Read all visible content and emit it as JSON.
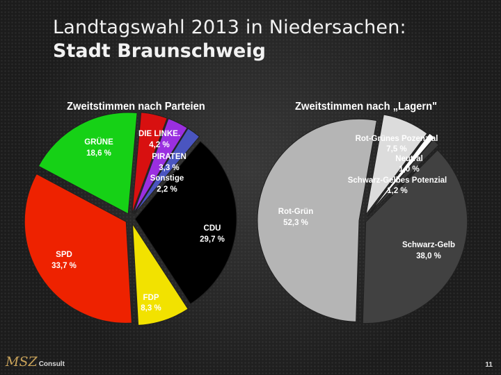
{
  "slide": {
    "title_line1": "Landtagswahl 2013 in Niedersachen:",
    "title_line2": "Stadt Braunschweig",
    "logo_mark": "MSZ",
    "logo_word": "Consult",
    "page_number": "11"
  },
  "chart_data": [
    {
      "type": "pie",
      "title": "Zweitstimmen nach Parteien",
      "slices": [
        {
          "label": "CDU",
          "value_text": "29,7 %",
          "value": 29.7,
          "color": "#000000"
        },
        {
          "label": "FDP",
          "value_text": "8,3 %",
          "value": 8.3,
          "color": "#f2e200"
        },
        {
          "label": "SPD",
          "value_text": "33,7 %",
          "value": 33.7,
          "color": "#ee2200"
        },
        {
          "label": "GRÜNE",
          "value_text": "18,6 %",
          "value": 18.6,
          "color": "#16d116"
        },
        {
          "label": "DIE LINKE.",
          "value_text": "4,2 %",
          "value": 4.2,
          "color": "#d81010"
        },
        {
          "label": "PIRATEN",
          "value_text": "3,3 %",
          "value": 3.3,
          "color": "#9a2fe0"
        },
        {
          "label": "Sonstige",
          "value_text": "2,2 %",
          "value": 2.2,
          "color": "#4a55c0"
        }
      ]
    },
    {
      "type": "pie",
      "title": "Zweitstimmen nach „Lagern\"",
      "slices": [
        {
          "label": "Rot-Grünes Pozenzial",
          "value_text": "7,5 %",
          "value": 7.5,
          "color": "#dcdcdc"
        },
        {
          "label": "Neutral",
          "value_text": "1,0 %",
          "value": 1.0,
          "color": "#ffffff"
        },
        {
          "label": "Schwarz-Gelbes Potenzial",
          "value_text": "1,2 %",
          "value": 1.2,
          "color": "#3a3a3a"
        },
        {
          "label": "Schwarz-Gelb",
          "value_text": "38,0 %",
          "value": 38.0,
          "color": "#414141"
        },
        {
          "label": "Rot-Grün",
          "value_text": "52,3 %",
          "value": 52.3,
          "color": "#b5b5b5"
        }
      ]
    }
  ]
}
